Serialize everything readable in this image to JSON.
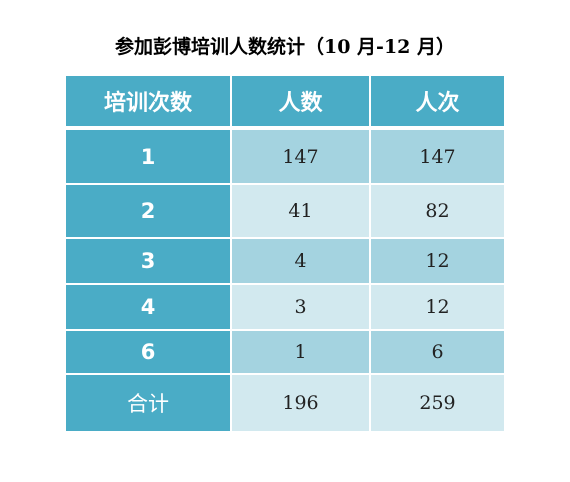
{
  "title": "参加彭博培训人数统计（10 月-12 月）",
  "headers": [
    "培训次数",
    "人数",
    "人次"
  ],
  "rows": [
    {
      "label": "1",
      "people": "147",
      "times": "147"
    },
    {
      "label": "2",
      "people": "41",
      "times": "82"
    },
    {
      "label": "3",
      "people": "4",
      "times": "12"
    },
    {
      "label": "4",
      "people": "3",
      "times": "12"
    },
    {
      "label": "6",
      "people": "1",
      "times": "6"
    }
  ],
  "total": {
    "label": "合计",
    "people": "196",
    "times": "259"
  },
  "colors": {
    "header": "#4aacc6",
    "row_dark": "#a4d3e0",
    "row_light": "#d2e9ef"
  }
}
